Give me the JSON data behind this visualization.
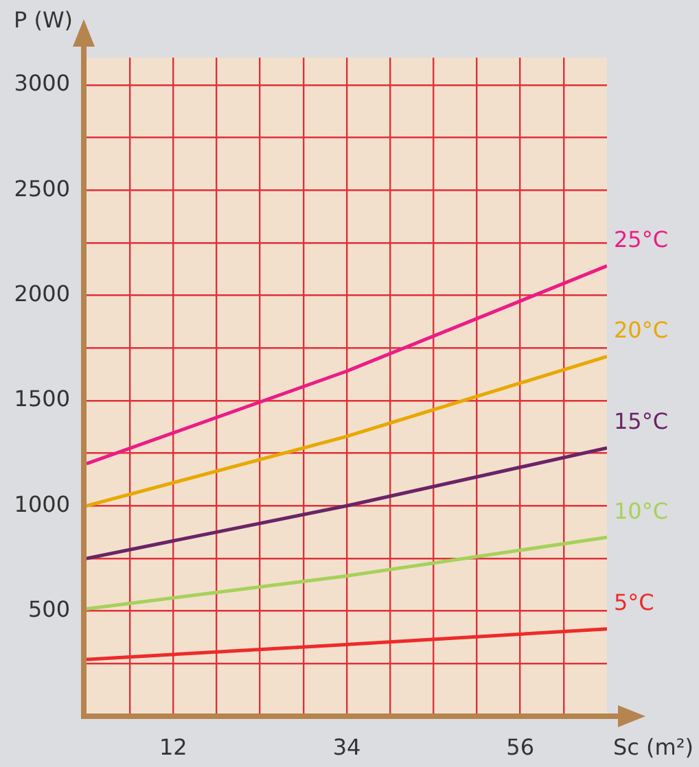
{
  "chart_data": {
    "type": "line",
    "xlabel": "Sc (m²)",
    "ylabel": "P (W)",
    "x": [
      1,
      34,
      67
    ],
    "xlim": [
      1,
      67
    ],
    "xticks": [
      {
        "value": 6.5,
        "label": null
      },
      12,
      {
        "value": 17.5,
        "label": null
      },
      {
        "value": 23,
        "label": null
      },
      {
        "value": 28.5,
        "label": null
      },
      34,
      {
        "value": 39.5,
        "label": null
      },
      {
        "value": 45,
        "label": null
      },
      {
        "value": 50.5,
        "label": null
      },
      56,
      {
        "value": 61.5,
        "label": null
      }
    ],
    "ylim": [
      0,
      3130
    ],
    "yticks": [
      {
        "value": 250,
        "label": null
      },
      500,
      {
        "value": 750,
        "label": null
      },
      1000,
      {
        "value": 1250,
        "label": null
      },
      1500,
      {
        "value": 1750,
        "label": null
      },
      2000,
      {
        "value": 2250,
        "label": null
      },
      2500,
      {
        "value": 2750,
        "label": null
      },
      3000
    ],
    "series": [
      {
        "name": "25°C",
        "color": "#ec1c86",
        "values": [
          1200,
          1640,
          2140
        ]
      },
      {
        "name": "20°C",
        "color": "#e8a800",
        "values": [
          1000,
          1330,
          1710
        ]
      },
      {
        "name": "15°C",
        "color": "#6b2466",
        "values": [
          750,
          1000,
          1275
        ]
      },
      {
        "name": "10°C",
        "color": "#a6d15a",
        "values": [
          510,
          667,
          850
        ]
      },
      {
        "name": "5°C",
        "color": "#ee2a2a",
        "values": [
          270,
          341,
          415
        ]
      }
    ],
    "grid": true,
    "legend": false,
    "marker": "none",
    "line_style": "solid"
  }
}
